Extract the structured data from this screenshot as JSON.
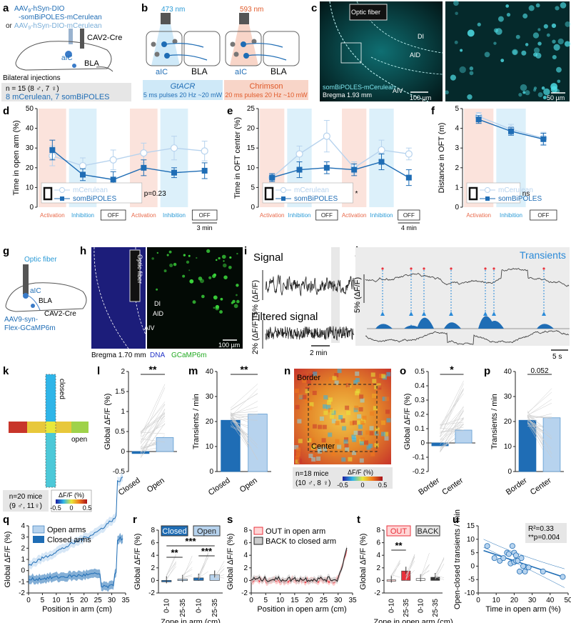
{
  "panels": {
    "a": {
      "label": "a",
      "virus1": "AAV",
      "virus1b": "-hSyn-DIO",
      "virus1c": "-somBiPOLES-mCerulean",
      "or": "or",
      "virus2": "AAV",
      "virus2b": "-hSyn-DIO-mCerulean",
      "cre": "CAV2-Cre",
      "aic": "aIC",
      "bla": "BLA",
      "bilateral": "Bilateral injections",
      "n": "n = 15 (8 ♂, 7 ♀)",
      "groups": "8 mCerulean, 7 somBiPOLES"
    },
    "b": {
      "label": "b",
      "wl1": "473 nm",
      "wl2": "593 nm",
      "aic": "aIC",
      "bla": "BLA",
      "opsin1": "GtACR",
      "opsin2": "Chrimson",
      "pulse1": "5 ms pulses 20 Hz ~20 mW",
      "pulse2": "20 ms pulses 20 Hz ~10 mW"
    },
    "c": {
      "label": "c",
      "fiber": "Optic fiber",
      "di": "DI",
      "aid": "AID",
      "aiv": "AIV",
      "construct": "somBiPOLES-mCerulean",
      "bregma": "Bregma 1.93 mm",
      "scale1": "100 µm",
      "scale2": "50 µm"
    },
    "d": {
      "label": "d"
    },
    "e": {
      "label": "e"
    },
    "f": {
      "label": "f"
    },
    "g": {
      "label": "g",
      "fiber": "Optic fiber",
      "aic": "aIC",
      "bla": "BLA",
      "virus": "AAV9-syn-",
      "virus2": "Flex-GCaMP6m",
      "cre": "CAV2-Cre"
    },
    "h": {
      "label": "h",
      "fiber": "Optic fiber",
      "di": "DI",
      "aid": "AID",
      "aiv": "AIV",
      "bregma": "Bregma 1.70 mm",
      "dna": "DNA",
      "gcamp": "GCaMP6m",
      "scale": "100 µm"
    },
    "i": {
      "label": "i",
      "signal": "Signal",
      "filtered": "Filtered signal",
      "scale1": "5% (ΔF/F)",
      "scale2": "2% (ΔF/F)",
      "time": "2 min"
    },
    "j": {
      "label": "j",
      "transients": "Transients",
      "scale": "5% (ΔF/F)",
      "time": "5 s"
    },
    "k": {
      "label": "k",
      "closed": "closed",
      "open": "open",
      "n": "n=20 mice",
      "sex": "(9 ♂, 11♀)",
      "cbar": "ΔF/F (%)",
      "cmin": "-0.5",
      "czero": "0",
      "cmax": "0.5"
    },
    "n": {
      "label": "n",
      "border": "Border",
      "center": "Center",
      "n": "n=18 mice",
      "sex": "(10 ♂, 8 ♀)",
      "cbar": "ΔF/F (%)",
      "cmin": "-0.5",
      "czero": "0",
      "cmax": "0.5"
    },
    "l": {
      "label": "l"
    },
    "m": {
      "label": "m"
    },
    "o": {
      "label": "o"
    },
    "p": {
      "label": "p"
    },
    "q": {
      "label": "q"
    },
    "r": {
      "label": "r"
    },
    "s": {
      "label": "s"
    },
    "t": {
      "label": "t"
    },
    "u": {
      "label": "u"
    }
  },
  "colors": {
    "dark": "#1f6db5",
    "light": "#b7d3ee",
    "activation": "#fbe3dc",
    "inhibition": "#dcf0fa",
    "red": "#e8313c"
  },
  "chart_data": [
    {
      "id": "d",
      "type": "line",
      "ylabel": "Time in open arm (%)",
      "ylim": [
        0,
        50
      ],
      "yticks": [
        "0",
        "10",
        "20",
        "30",
        "40",
        "50"
      ],
      "epochs": [
        "Activation",
        "Inhibition",
        "OFF",
        "Activation",
        "Inhibition",
        "OFF"
      ],
      "timebar": "3 min",
      "series": [
        {
          "name": "mCerulean",
          "values": [
            26,
            21,
            24,
            27.5,
            30,
            28.5
          ],
          "err": [
            5,
            4,
            5,
            5,
            6,
            5
          ]
        },
        {
          "name": "somBiPOLES",
          "values": [
            29,
            16.5,
            14,
            20,
            17.5,
            18.5
          ],
          "err": [
            5,
            3,
            4,
            4,
            2.5,
            4
          ]
        }
      ],
      "stat": "p=0.23"
    },
    {
      "id": "e",
      "type": "line",
      "ylabel": "Time in OFT center (%)",
      "ylim": [
        0,
        25
      ],
      "yticks": [
        "0",
        "5",
        "10",
        "15",
        "20",
        "25"
      ],
      "epochs": [
        "Activation",
        "Inhibition",
        "OFF",
        "Activation",
        "Inhibition",
        "OFF"
      ],
      "timebar": "4 min",
      "series": [
        {
          "name": "mCerulean",
          "values": [
            7.5,
            13.5,
            18,
            10,
            14.5,
            13.5
          ],
          "err": [
            1,
            2,
            4,
            1.5,
            2.5,
            1.5
          ]
        },
        {
          "name": "somBiPOLES",
          "values": [
            7.5,
            9.5,
            10,
            9.5,
            11.5,
            7.5
          ],
          "err": [
            1,
            2,
            1.5,
            1.5,
            2,
            2
          ]
        }
      ],
      "stat": "*"
    },
    {
      "id": "f",
      "type": "line",
      "ylabel": "Distance in OFT (m)",
      "ylim": [
        0,
        5
      ],
      "yticks": [
        "0",
        "1",
        "2",
        "3",
        "4",
        "5"
      ],
      "epochs": [
        "Activation",
        "Inhibition",
        "OFF"
      ],
      "series": [
        {
          "name": "mCerulean",
          "values": [
            4.6,
            3.95,
            3.5
          ],
          "err": [
            0.2,
            0.25,
            0.3
          ]
        },
        {
          "name": "somBiPOLES",
          "values": [
            4.45,
            3.85,
            3.45
          ],
          "err": [
            0.2,
            0.2,
            0.3
          ]
        }
      ],
      "stat": "ns"
    },
    {
      "id": "l",
      "type": "bar",
      "ylabel": "Global ΔF/F (%)",
      "ylim": [
        -0.5,
        2
      ],
      "yticks": [
        "-0.5",
        "0",
        "0.5",
        "1",
        "1.5",
        "2"
      ],
      "categories": [
        "Closed",
        "Open"
      ],
      "values": [
        -0.05,
        0.35
      ],
      "stat": "**"
    },
    {
      "id": "m",
      "type": "bar",
      "ylabel": "Transients / min",
      "ylim": [
        0,
        40
      ],
      "yticks": [
        "0",
        "10",
        "20",
        "30",
        "40"
      ],
      "categories": [
        "Closed",
        "Open"
      ],
      "values": [
        20.5,
        23
      ],
      "stat": "**"
    },
    {
      "id": "o",
      "type": "bar",
      "ylabel": "Global ΔF/F (%)",
      "ylim": [
        -0.2,
        0.5
      ],
      "yticks": [
        "-0.2",
        "-0.1",
        "0",
        "0.1",
        "0.2",
        "0.3",
        "0.4",
        "0.5"
      ],
      "categories": [
        "Border",
        "Center"
      ],
      "values": [
        -0.02,
        0.09
      ],
      "stat": "*"
    },
    {
      "id": "p",
      "type": "bar",
      "ylabel": "Transients / min",
      "ylim": [
        0,
        40
      ],
      "yticks": [
        "0",
        "10",
        "20",
        "30",
        "40"
      ],
      "categories": [
        "Border",
        "Center"
      ],
      "values": [
        20.5,
        21.5
      ],
      "stat": "0.052"
    },
    {
      "id": "q",
      "type": "line",
      "ylabel": "Global ΔF/F (%)",
      "xlabel": "Position in arm (cm)",
      "xlim": [
        0,
        35
      ],
      "ylim": [
        -2,
        4
      ],
      "xticks": [
        "0",
        "5",
        "10",
        "15",
        "20",
        "25",
        "30",
        "35"
      ],
      "yticks": [
        "-2",
        "-1",
        "0",
        "1",
        "2",
        "3",
        "4"
      ],
      "series": [
        {
          "name": "Open arms"
        },
        {
          "name": "Closed arms"
        }
      ]
    },
    {
      "id": "r",
      "type": "bar",
      "ylabel": "Global ΔF/F (%)",
      "xlabel": "Zone in arm (cm)",
      "ylim": [
        -2,
        8
      ],
      "yticks": [
        "-2",
        "0",
        "2",
        "4",
        "6",
        "8"
      ],
      "groups": [
        "Closed",
        "Open"
      ],
      "categories": [
        "0-10",
        "25-35",
        "0-10",
        "25-35"
      ],
      "values": [
        0,
        0.2,
        0.4,
        0.9
      ],
      "stats": [
        "**",
        "***",
        "***"
      ]
    },
    {
      "id": "s",
      "type": "line",
      "ylabel": "Global ΔF/F (%)",
      "xlabel": "Position in open arm (cm)",
      "xlim": [
        0,
        35
      ],
      "ylim": [
        -2,
        8
      ],
      "xticks": [
        "0",
        "5",
        "10",
        "15",
        "20",
        "25",
        "30",
        "35"
      ],
      "yticks": [
        "-2",
        "0",
        "2",
        "4",
        "6",
        "8"
      ],
      "series": [
        {
          "name": "OUT in open arm"
        },
        {
          "name": "BACK to closed arm"
        }
      ]
    },
    {
      "id": "t",
      "type": "bar",
      "ylabel": "Global ΔF/F (%)",
      "xlabel": "Zone in open arm (cm)",
      "ylim": [
        -2,
        8
      ],
      "yticks": [
        "-2",
        "0",
        "2",
        "4",
        "6",
        "8"
      ],
      "groups": [
        "OUT",
        "BACK"
      ],
      "categories": [
        "0-10",
        "25-35",
        "0-10",
        "25-35"
      ],
      "values": [
        0.1,
        1.5,
        0.3,
        0.5
      ],
      "stat": "**"
    },
    {
      "id": "u",
      "type": "scatter",
      "ylabel": "Open-closed transients / min",
      "xlabel": "Time in open arm (%)",
      "xlim": [
        0,
        50
      ],
      "ylim": [
        -10,
        15
      ],
      "xticks": [
        "0",
        "10",
        "20",
        "30",
        "40",
        "50"
      ],
      "yticks": [
        "-10",
        "-5",
        "0",
        "5",
        "10",
        "15"
      ],
      "r2": "R²=0.33",
      "p": "**p=0.004",
      "x": [
        5,
        9,
        12,
        14,
        16,
        17,
        18,
        19,
        20,
        20,
        21,
        21,
        22,
        23,
        24,
        25,
        26,
        28,
        36,
        47
      ],
      "y": [
        7.5,
        3,
        2,
        3,
        5,
        4.5,
        1,
        7.5,
        1.5,
        5,
        2,
        4,
        2,
        -2,
        3,
        0,
        -2,
        -0.5,
        -2,
        -4
      ]
    }
  ]
}
